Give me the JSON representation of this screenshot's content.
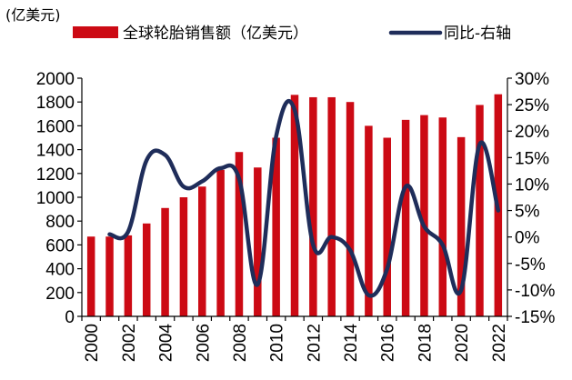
{
  "chart_data": {
    "type": "bar+line",
    "unit_label": "(亿美元)",
    "x": [
      "2000",
      "2001",
      "2002",
      "2003",
      "2004",
      "2005",
      "2006",
      "2007",
      "2008",
      "2009",
      "2010",
      "2011",
      "2012",
      "2013",
      "2014",
      "2015",
      "2016",
      "2017",
      "2018",
      "2019",
      "2020",
      "2021",
      "2022"
    ],
    "x_tick_labels": [
      "2000",
      "2002",
      "2004",
      "2006",
      "2008",
      "2010",
      "2012",
      "2014",
      "2016",
      "2018",
      "2020",
      "2022"
    ],
    "y_left": {
      "min": 0,
      "max": 2000,
      "ticks": [
        "0",
        "200",
        "400",
        "600",
        "800",
        "1000",
        "1200",
        "1400",
        "1600",
        "1800",
        "2000"
      ]
    },
    "y_right": {
      "min": -15,
      "max": 30,
      "ticks": [
        "-15%",
        "-10%",
        "-5%",
        "0%",
        "5%",
        "10%",
        "15%",
        "20%",
        "25%",
        "30%"
      ]
    },
    "series": [
      {
        "name": "全球轮胎销售额（亿美元）",
        "type": "bar",
        "axis": "left",
        "color": "#cc0a14",
        "values": [
          670,
          670,
          680,
          780,
          910,
          1000,
          1090,
          1230,
          1380,
          1250,
          1500,
          1860,
          1840,
          1840,
          1800,
          1600,
          1500,
          1650,
          1690,
          1670,
          1505,
          1775,
          1865
        ]
      },
      {
        "name": "同比-右轴",
        "type": "line",
        "axis": "right",
        "color": "#1f2d5a",
        "x": [
          "2001",
          "2002",
          "2003",
          "2004",
          "2005",
          "2006",
          "2007",
          "2008",
          "2009",
          "2010",
          "2011",
          "2012",
          "2013",
          "2014",
          "2015",
          "2016",
          "2017",
          "2018",
          "2019",
          "2020",
          "2021",
          "2022"
        ],
        "values": [
          0.5,
          1.0,
          14.5,
          15.5,
          9.5,
          10.5,
          13.0,
          11.0,
          -9.0,
          19.0,
          24.0,
          -1.5,
          0.0,
          -2.5,
          -11.0,
          -6.0,
          9.5,
          2.0,
          -1.5,
          -10.0,
          17.5,
          5.0
        ]
      }
    ],
    "legend_position": "top",
    "grid": false
  }
}
